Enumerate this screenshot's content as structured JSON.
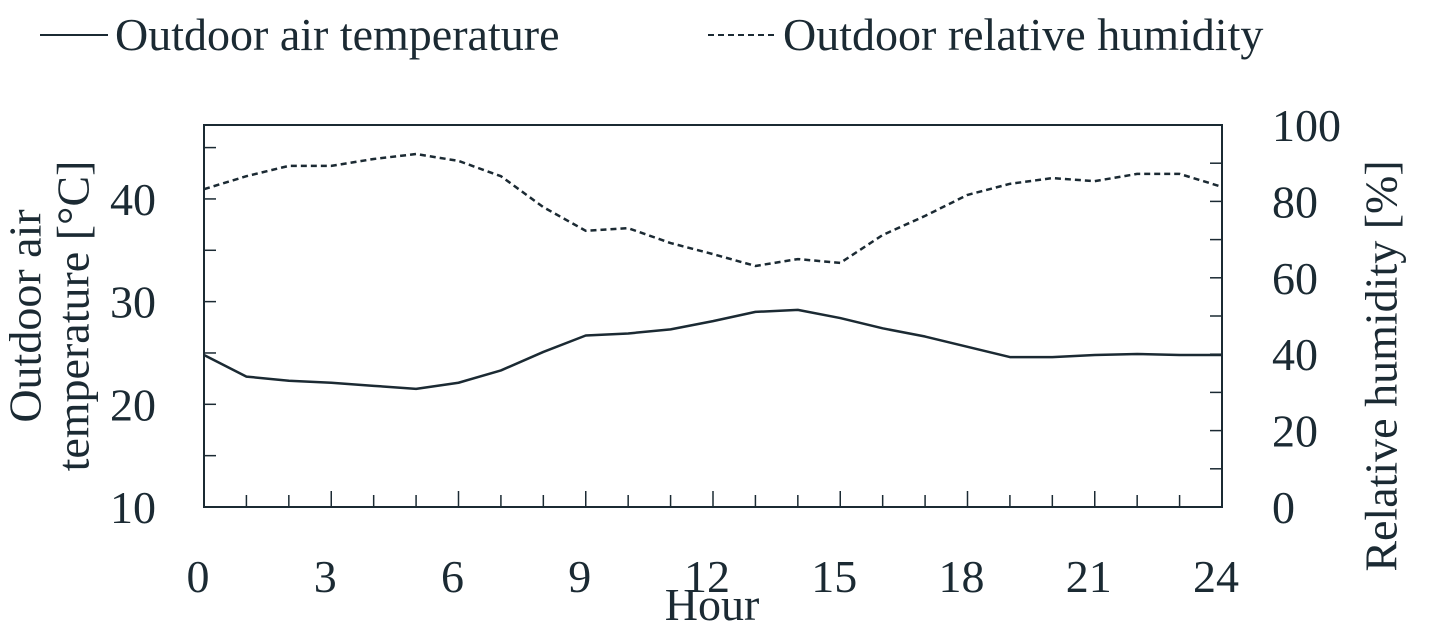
{
  "chart_data": {
    "type": "line",
    "xlabel": "Hour",
    "ylabel": [
      "Outdoor air",
      "temperature [°C]"
    ],
    "y2label": "Relative humidity [%]",
    "x": [
      0,
      1,
      2,
      3,
      4,
      5,
      6,
      7,
      8,
      9,
      10,
      11,
      12,
      13,
      14,
      15,
      16,
      17,
      18,
      19,
      20,
      21,
      22,
      23,
      24
    ],
    "series": [
      {
        "name": "Outdoor air temperature",
        "color": "#1b2a33",
        "style": "solid",
        "axis": "y",
        "values": [
          24.8,
          22.7,
          22.3,
          22.1,
          21.8,
          21.5,
          22.1,
          23.3,
          25.1,
          26.7,
          26.9,
          27.3,
          28.1,
          29.0,
          29.2,
          28.4,
          27.4,
          26.6,
          25.6,
          24.6,
          24.6,
          24.8,
          24.9,
          24.8,
          24.8
        ]
      },
      {
        "name": "Outdoor relative humidity",
        "color": "#1b2a33",
        "style": "dashed",
        "axis": "y2",
        "values": [
          83.2,
          86.6,
          89.3,
          89.3,
          91.1,
          92.4,
          90.6,
          86.6,
          78.5,
          72.3,
          73.0,
          69.1,
          66.2,
          63.1,
          64.9,
          63.9,
          71.2,
          76.2,
          81.7,
          84.6,
          86.1,
          85.3,
          87.2,
          87.2,
          83.8
        ]
      }
    ],
    "xlim": [
      0,
      24
    ],
    "xticks": [
      0,
      3,
      6,
      9,
      12,
      15,
      18,
      21,
      24
    ],
    "xminor_ticks": [
      1,
      2,
      4,
      5,
      7,
      8,
      10,
      11,
      13,
      14,
      16,
      17,
      19,
      20,
      22,
      23
    ],
    "ylim": [
      10,
      47.2
    ],
    "yticks": [
      10,
      20,
      30,
      40
    ],
    "yminor_ticks": [
      15,
      25,
      35,
      45
    ],
    "y2lim": [
      0,
      100
    ],
    "y2ticks": [
      0,
      20,
      40,
      60,
      80,
      100
    ],
    "y2minor_ticks": [
      10,
      30,
      50,
      70,
      90
    ],
    "grid": false
  }
}
